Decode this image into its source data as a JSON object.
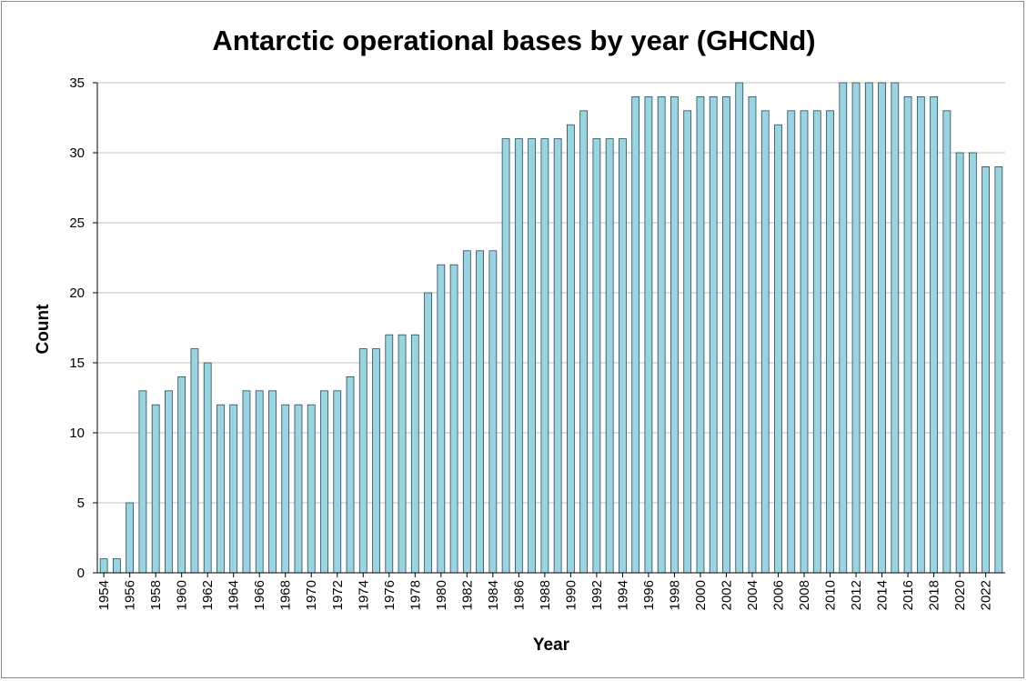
{
  "chart_data": {
    "type": "bar",
    "title": "Antarctic operational bases by year (GHCNd)",
    "xlabel": "Year",
    "ylabel": "Count",
    "ylim": [
      0,
      35
    ],
    "ytick_step": 5,
    "grid": true,
    "bar_color": "#9dd3df",
    "bar_edge_color": "#1f4e5a",
    "categories": [
      "1954",
      "1955",
      "1956",
      "1957",
      "1958",
      "1959",
      "1960",
      "1961",
      "1962",
      "1963",
      "1964",
      "1965",
      "1966",
      "1967",
      "1968",
      "1969",
      "1970",
      "1971",
      "1972",
      "1973",
      "1974",
      "1975",
      "1976",
      "1977",
      "1978",
      "1979",
      "1980",
      "1981",
      "1982",
      "1983",
      "1984",
      "1985",
      "1986",
      "1987",
      "1988",
      "1989",
      "1990",
      "1991",
      "1992",
      "1993",
      "1994",
      "1995",
      "1996",
      "1997",
      "1998",
      "1999",
      "2000",
      "2001",
      "2002",
      "2003",
      "2004",
      "2005",
      "2006",
      "2007",
      "2008",
      "2009",
      "2010",
      "2011",
      "2012",
      "2013",
      "2014",
      "2015",
      "2016",
      "2017",
      "2018",
      "2019",
      "2020",
      "2021",
      "2022",
      "2023"
    ],
    "x_tick_labels": [
      "1954",
      "1956",
      "1958",
      "1960",
      "1962",
      "1964",
      "1966",
      "1968",
      "1970",
      "1972",
      "1974",
      "1976",
      "1978",
      "1980",
      "1982",
      "1984",
      "1986",
      "1988",
      "1990",
      "1992",
      "1994",
      "1996",
      "1998",
      "2000",
      "2002",
      "2004",
      "2006",
      "2008",
      "2010",
      "2012",
      "2014",
      "2016",
      "2018",
      "2020",
      "2022"
    ],
    "values": [
      1,
      1,
      5,
      13,
      12,
      13,
      14,
      16,
      15,
      12,
      12,
      13,
      13,
      13,
      12,
      12,
      12,
      13,
      13,
      14,
      16,
      16,
      17,
      17,
      17,
      20,
      22,
      22,
      23,
      23,
      23,
      31,
      31,
      31,
      31,
      31,
      32,
      33,
      31,
      31,
      31,
      34,
      34,
      34,
      34,
      33,
      34,
      34,
      34,
      35,
      34,
      33,
      32,
      33,
      33,
      33,
      33,
      35,
      35,
      35,
      35,
      35,
      34,
      34,
      34,
      33,
      30,
      30,
      29,
      29
    ]
  }
}
